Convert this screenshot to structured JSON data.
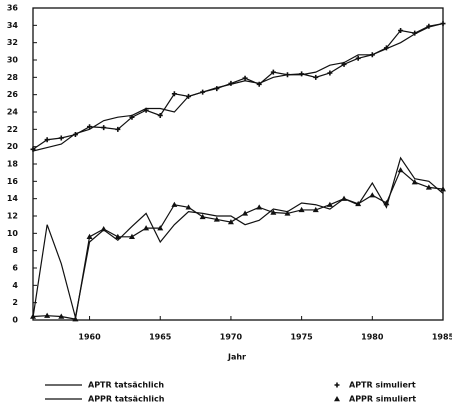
{
  "chart_data": {
    "type": "line",
    "xlabel": "Jahr",
    "x": [
      1956,
      1957,
      1958,
      1959,
      1960,
      1961,
      1962,
      1963,
      1964,
      1965,
      1966,
      1967,
      1968,
      1969,
      1970,
      1971,
      1972,
      1973,
      1974,
      1975,
      1976,
      1977,
      1978,
      1979,
      1980,
      1981,
      1982,
      1983,
      1984,
      1985
    ],
    "series": [
      {
        "name": "APTR tatsächlich",
        "color": "#111111",
        "line": true,
        "marker": "none",
        "values": [
          19.5,
          19.9,
          20.3,
          21.5,
          22.0,
          23.0,
          23.4,
          23.6,
          24.4,
          24.4,
          24.0,
          25.8,
          26.3,
          26.8,
          27.2,
          27.6,
          27.3,
          28.0,
          28.3,
          28.3,
          28.6,
          29.4,
          29.7,
          30.6,
          30.6,
          31.3,
          32.0,
          33.0,
          33.8,
          34.2
        ]
      },
      {
        "name": "APPR tatsächlich",
        "color": "#111111",
        "line": true,
        "marker": "none",
        "values": [
          0.3,
          11.0,
          6.5,
          0.3,
          9.0,
          10.4,
          9.2,
          10.8,
          12.3,
          9.0,
          11.0,
          12.5,
          12.3,
          12.0,
          12.0,
          11.0,
          11.5,
          12.8,
          12.5,
          13.5,
          13.3,
          12.8,
          14.0,
          13.3,
          15.8,
          13.0,
          18.7,
          16.3,
          16.0,
          14.6
        ]
      },
      {
        "name": "APTR simuliert",
        "color": "#111111",
        "line": true,
        "marker": "plus",
        "values": [
          19.7,
          20.8,
          21.0,
          21.4,
          22.3,
          22.2,
          22.0,
          23.4,
          24.2,
          23.6,
          26.1,
          25.8,
          26.3,
          26.7,
          27.3,
          27.9,
          27.2,
          28.6,
          28.3,
          28.4,
          28.0,
          28.5,
          29.5,
          30.2,
          30.6,
          31.4,
          33.4,
          33.1,
          33.9,
          34.2
        ]
      },
      {
        "name": "APPR simuliert",
        "color": "#111111",
        "line": true,
        "marker": "triangle",
        "values": [
          0.4,
          0.5,
          0.4,
          0.1,
          9.6,
          10.5,
          9.6,
          9.6,
          10.6,
          10.6,
          13.3,
          13.0,
          11.9,
          11.6,
          11.3,
          12.3,
          13.0,
          12.4,
          12.3,
          12.7,
          12.7,
          13.3,
          14.0,
          13.4,
          14.4,
          13.5,
          17.3,
          15.9,
          15.3,
          15.1
        ]
      }
    ],
    "xlim": [
      1956,
      1985
    ],
    "xticks": [
      1960,
      1965,
      1970,
      1975,
      1980,
      1985
    ],
    "ylim": [
      0,
      36
    ],
    "yticks": [
      0,
      2,
      4,
      6,
      8,
      10,
      12,
      14,
      16,
      18,
      20,
      22,
      24,
      26,
      28,
      30,
      32,
      34,
      36
    ]
  }
}
